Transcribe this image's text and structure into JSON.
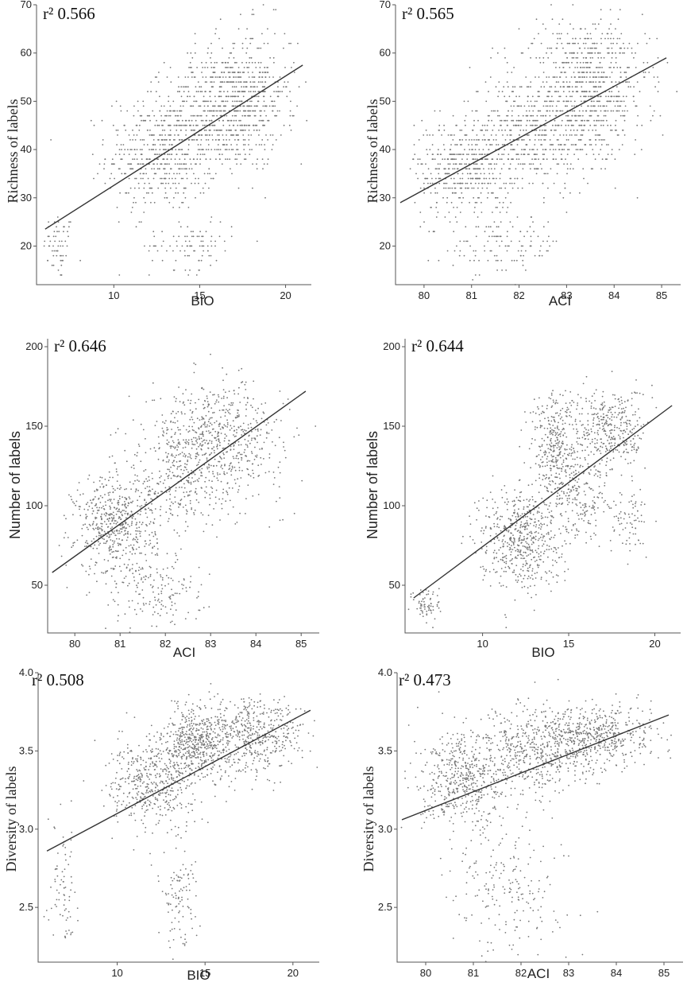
{
  "chart_data": [
    {
      "type": "scatter",
      "annotation": "r² 0.566",
      "xlabel": "BIO",
      "ylabel": "Richness of labels",
      "xlim": [
        5.5,
        21.5
      ],
      "ylim": [
        12,
        70
      ],
      "x_ticks": [
        10,
        15,
        20
      ],
      "y_ticks": [
        20,
        30,
        40,
        50,
        60,
        70
      ],
      "fit_line": {
        "x": [
          6,
          21
        ],
        "y": [
          23.5,
          57.5
        ]
      },
      "clusters": [
        {
          "cx": 6.8,
          "cy": 20,
          "sx": 0.45,
          "sy": 3.5,
          "n": 60
        },
        {
          "cx": 12.8,
          "cy": 39,
          "sx": 1.6,
          "sy": 6,
          "n": 500
        },
        {
          "cx": 16.5,
          "cy": 48,
          "sx": 1.7,
          "sy": 6,
          "n": 600
        },
        {
          "cx": 14.5,
          "cy": 20,
          "sx": 1.2,
          "sy": 2.5,
          "n": 90
        },
        {
          "cx": 17.8,
          "cy": 54,
          "sx": 1.5,
          "sy": 6,
          "n": 250
        }
      ],
      "integer_y": true,
      "grid": false
    },
    {
      "type": "scatter",
      "annotation": "r² 0.565",
      "xlabel": "ACI",
      "ylabel": "Richness of labels",
      "xlim": [
        79.4,
        85.4
      ],
      "ylim": [
        12,
        70
      ],
      "x_ticks": [
        80,
        81,
        82,
        83,
        84,
        85
      ],
      "y_ticks": [
        20,
        30,
        40,
        50,
        60,
        70
      ],
      "fit_line": {
        "x": [
          79.5,
          85.1
        ],
        "y": [
          29,
          59
        ]
      },
      "clusters": [
        {
          "cx": 80.8,
          "cy": 36,
          "sx": 0.5,
          "sy": 5,
          "n": 400
        },
        {
          "cx": 82.2,
          "cy": 43,
          "sx": 0.7,
          "sy": 6,
          "n": 500
        },
        {
          "cx": 83.5,
          "cy": 51,
          "sx": 0.6,
          "sy": 6,
          "n": 600
        },
        {
          "cx": 81.7,
          "cy": 20,
          "sx": 0.6,
          "sy": 3,
          "n": 120
        },
        {
          "cx": 83.3,
          "cy": 60,
          "sx": 0.7,
          "sy": 3.5,
          "n": 150
        }
      ],
      "integer_y": true,
      "grid": false
    },
    {
      "type": "scatter",
      "annotation": "r² 0.646",
      "xlabel": "ACI",
      "ylabel": "Number of labels",
      "xlim": [
        79.4,
        85.4
      ],
      "ylim": [
        20,
        205
      ],
      "x_ticks": [
        80,
        81,
        82,
        83,
        84,
        85
      ],
      "y_ticks": [
        50,
        100,
        150,
        200
      ],
      "fit_line": {
        "x": [
          79.5,
          85.1
        ],
        "y": [
          58,
          172
        ]
      },
      "clusters": [
        {
          "cx": 80.9,
          "cy": 88,
          "sx": 0.45,
          "sy": 16,
          "n": 550
        },
        {
          "cx": 83.1,
          "cy": 140,
          "sx": 0.75,
          "sy": 18,
          "n": 700
        },
        {
          "cx": 81.8,
          "cy": 45,
          "sx": 0.55,
          "sy": 12,
          "n": 150
        },
        {
          "cx": 82.2,
          "cy": 112,
          "sx": 0.5,
          "sy": 18,
          "n": 200
        }
      ],
      "integer_y": false,
      "grid": false
    },
    {
      "type": "scatter",
      "annotation": "r² 0.644",
      "xlabel": "BIO",
      "ylabel": "Number of labels",
      "xlim": [
        5.5,
        21.5
      ],
      "ylim": [
        20,
        205
      ],
      "x_ticks": [
        10,
        15,
        20
      ],
      "y_ticks": [
        50,
        100,
        150,
        200
      ],
      "fit_line": {
        "x": [
          6,
          21
        ],
        "y": [
          42,
          163
        ]
      },
      "clusters": [
        {
          "cx": 6.8,
          "cy": 38,
          "sx": 0.4,
          "sy": 6,
          "n": 70
        },
        {
          "cx": 12.2,
          "cy": 80,
          "sx": 1.2,
          "sy": 16,
          "n": 550
        },
        {
          "cx": 14.2,
          "cy": 140,
          "sx": 0.7,
          "sy": 16,
          "n": 300
        },
        {
          "cx": 17.5,
          "cy": 148,
          "sx": 1.0,
          "sy": 13,
          "n": 350
        },
        {
          "cx": 15.5,
          "cy": 108,
          "sx": 1.0,
          "sy": 15,
          "n": 250
        },
        {
          "cx": 18.5,
          "cy": 92,
          "sx": 0.6,
          "sy": 10,
          "n": 70
        }
      ],
      "integer_y": false,
      "grid": false
    },
    {
      "type": "scatter",
      "annotation": "r² 0.508",
      "xlabel": "BIO",
      "ylabel": "Diversity of labels",
      "xlim": [
        5.5,
        21.5
      ],
      "ylim": [
        2.15,
        4.0
      ],
      "x_ticks": [
        10,
        15,
        20
      ],
      "y_ticks": [
        2.5,
        3.0,
        3.5,
        4.0
      ],
      "y_tick_labels": [
        "2.5",
        "3.0",
        "3.5",
        "4.0"
      ],
      "fit_line": {
        "x": [
          6,
          21
        ],
        "y": [
          2.86,
          3.76
        ]
      },
      "clusters": [
        {
          "cx": 6.9,
          "cy": 2.62,
          "sx": 0.4,
          "sy": 0.2,
          "n": 80
        },
        {
          "cx": 12.0,
          "cy": 3.3,
          "sx": 1.2,
          "sy": 0.14,
          "n": 450
        },
        {
          "cx": 14.5,
          "cy": 3.55,
          "sx": 0.9,
          "sy": 0.12,
          "n": 500
        },
        {
          "cx": 17.8,
          "cy": 3.6,
          "sx": 1.4,
          "sy": 0.12,
          "n": 500
        },
        {
          "cx": 13.5,
          "cy": 2.6,
          "sx": 0.6,
          "sy": 0.18,
          "n": 110
        }
      ],
      "integer_y": false,
      "grid": false
    },
    {
      "type": "scatter",
      "annotation": "r² 0.473",
      "xlabel": "ACI",
      "ylabel": "Diversity of labels",
      "xlim": [
        79.4,
        85.4
      ],
      "ylim": [
        2.15,
        4.0
      ],
      "x_ticks": [
        80,
        81,
        82,
        83,
        84,
        85
      ],
      "y_ticks": [
        2.5,
        3.0,
        3.5,
        4.0
      ],
      "y_tick_labels": [
        "2.5",
        "3.0",
        "3.5",
        "4.0"
      ],
      "fit_line": {
        "x": [
          79.5,
          85.1
        ],
        "y": [
          3.06,
          3.73
        ]
      },
      "clusters": [
        {
          "cx": 80.8,
          "cy": 3.3,
          "sx": 0.45,
          "sy": 0.15,
          "n": 500
        },
        {
          "cx": 82.3,
          "cy": 3.5,
          "sx": 0.6,
          "sy": 0.14,
          "n": 500
        },
        {
          "cx": 83.6,
          "cy": 3.6,
          "sx": 0.6,
          "sy": 0.1,
          "n": 500
        },
        {
          "cx": 81.8,
          "cy": 2.62,
          "sx": 0.6,
          "sy": 0.22,
          "n": 200
        }
      ],
      "integer_y": false,
      "grid": false
    }
  ]
}
